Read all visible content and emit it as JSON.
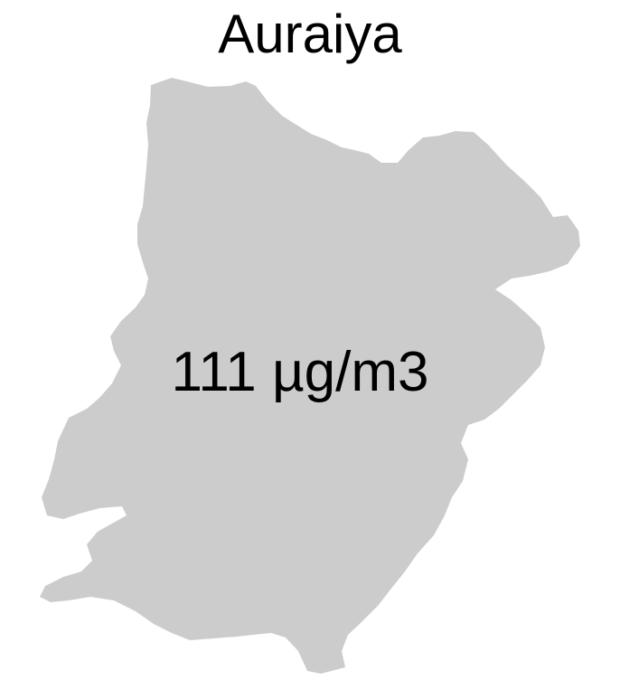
{
  "map": {
    "title": "Auraiya",
    "region_value_label": "111 µg/m3",
    "colors": {
      "region_fill": "#cccccc",
      "background": "#ffffff",
      "text": "#000000"
    }
  }
}
